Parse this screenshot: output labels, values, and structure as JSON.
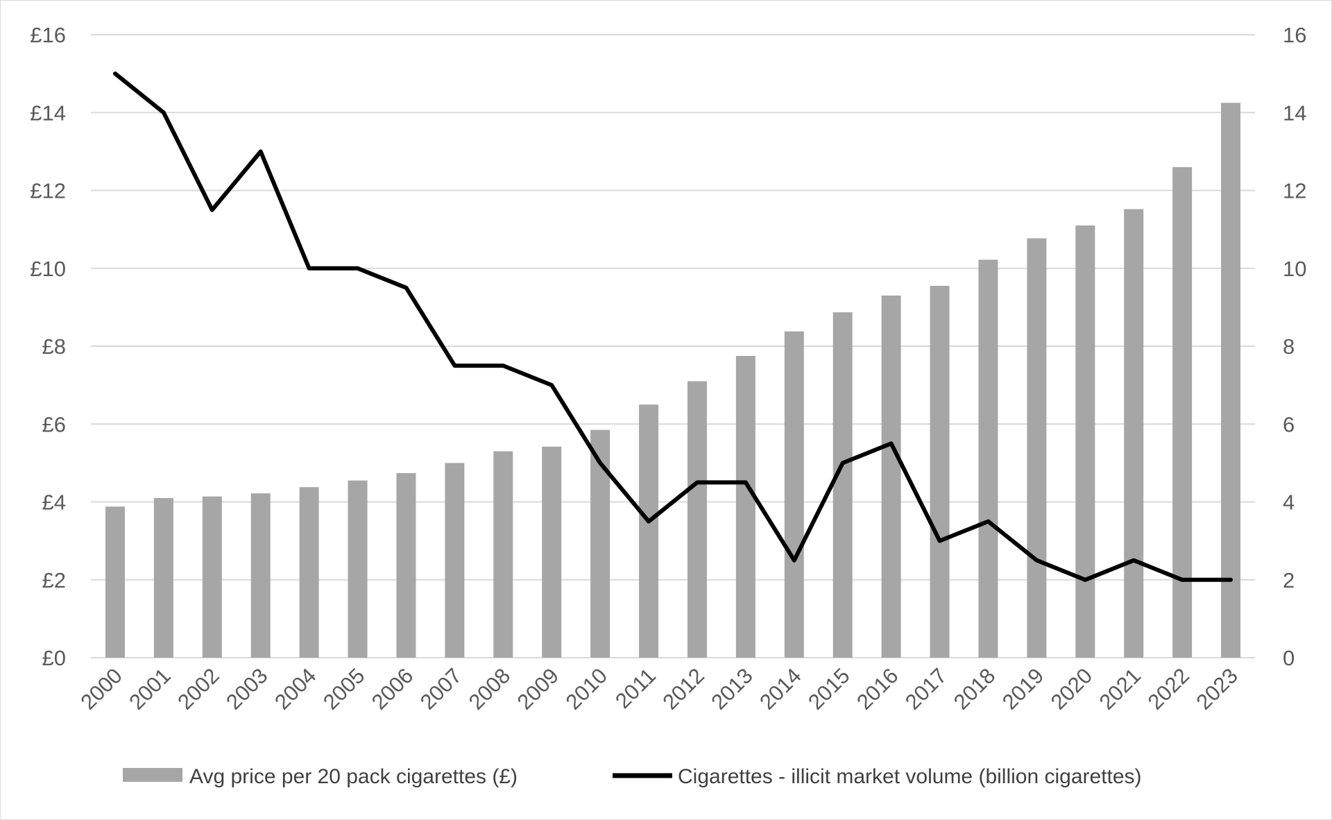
{
  "chart_data": {
    "type": "bar",
    "categories": [
      "2000",
      "2001",
      "2002",
      "2003",
      "2004",
      "2005",
      "2006",
      "2007",
      "2008",
      "2009",
      "2010",
      "2011",
      "2012",
      "2013",
      "2014",
      "2015",
      "2016",
      "2017",
      "2018",
      "2019",
      "2020",
      "2021",
      "2022",
      "2023"
    ],
    "series": [
      {
        "name": "Avg price per 20 pack cigarettes (£)",
        "type": "bar",
        "axis": "left",
        "color": "#a6a6a6",
        "values": [
          3.88,
          4.1,
          4.14,
          4.22,
          4.38,
          4.55,
          4.74,
          5.0,
          5.3,
          5.42,
          5.85,
          6.5,
          7.1,
          7.75,
          8.38,
          8.87,
          9.3,
          9.55,
          10.22,
          10.77,
          11.1,
          11.52,
          12.6,
          14.25
        ]
      },
      {
        "name": "Cigarettes - illicit market volume (billion cigarettes)",
        "type": "line",
        "axis": "right",
        "color": "#000000",
        "values": [
          15,
          14,
          11.5,
          13,
          10,
          10,
          9.5,
          7.5,
          7.5,
          7,
          5,
          3.5,
          4.5,
          4.5,
          2.5,
          5,
          5.5,
          3,
          3.5,
          2.5,
          2,
          2.5,
          2,
          2
        ]
      }
    ],
    "y_left": {
      "range": [
        0,
        16
      ],
      "ticks": [
        0,
        2,
        4,
        6,
        8,
        10,
        12,
        14,
        16
      ],
      "tick_labels": [
        "£0",
        "£2",
        "£4",
        "£6",
        "£8",
        "£10",
        "£12",
        "£14",
        "£16"
      ]
    },
    "y_right": {
      "range": [
        0,
        16
      ],
      "ticks": [
        0,
        2,
        4,
        6,
        8,
        10,
        12,
        14,
        16
      ],
      "tick_labels": [
        "0",
        "2",
        "4",
        "6",
        "8",
        "10",
        "12",
        "14",
        "16"
      ]
    },
    "grid": true,
    "legend_position": "bottom",
    "title": "",
    "xlabel": "",
    "ylabel": "",
    "colors": {
      "grid": "#d9d9d9",
      "tick_text": "#595959",
      "legend_text": "#404040"
    }
  }
}
